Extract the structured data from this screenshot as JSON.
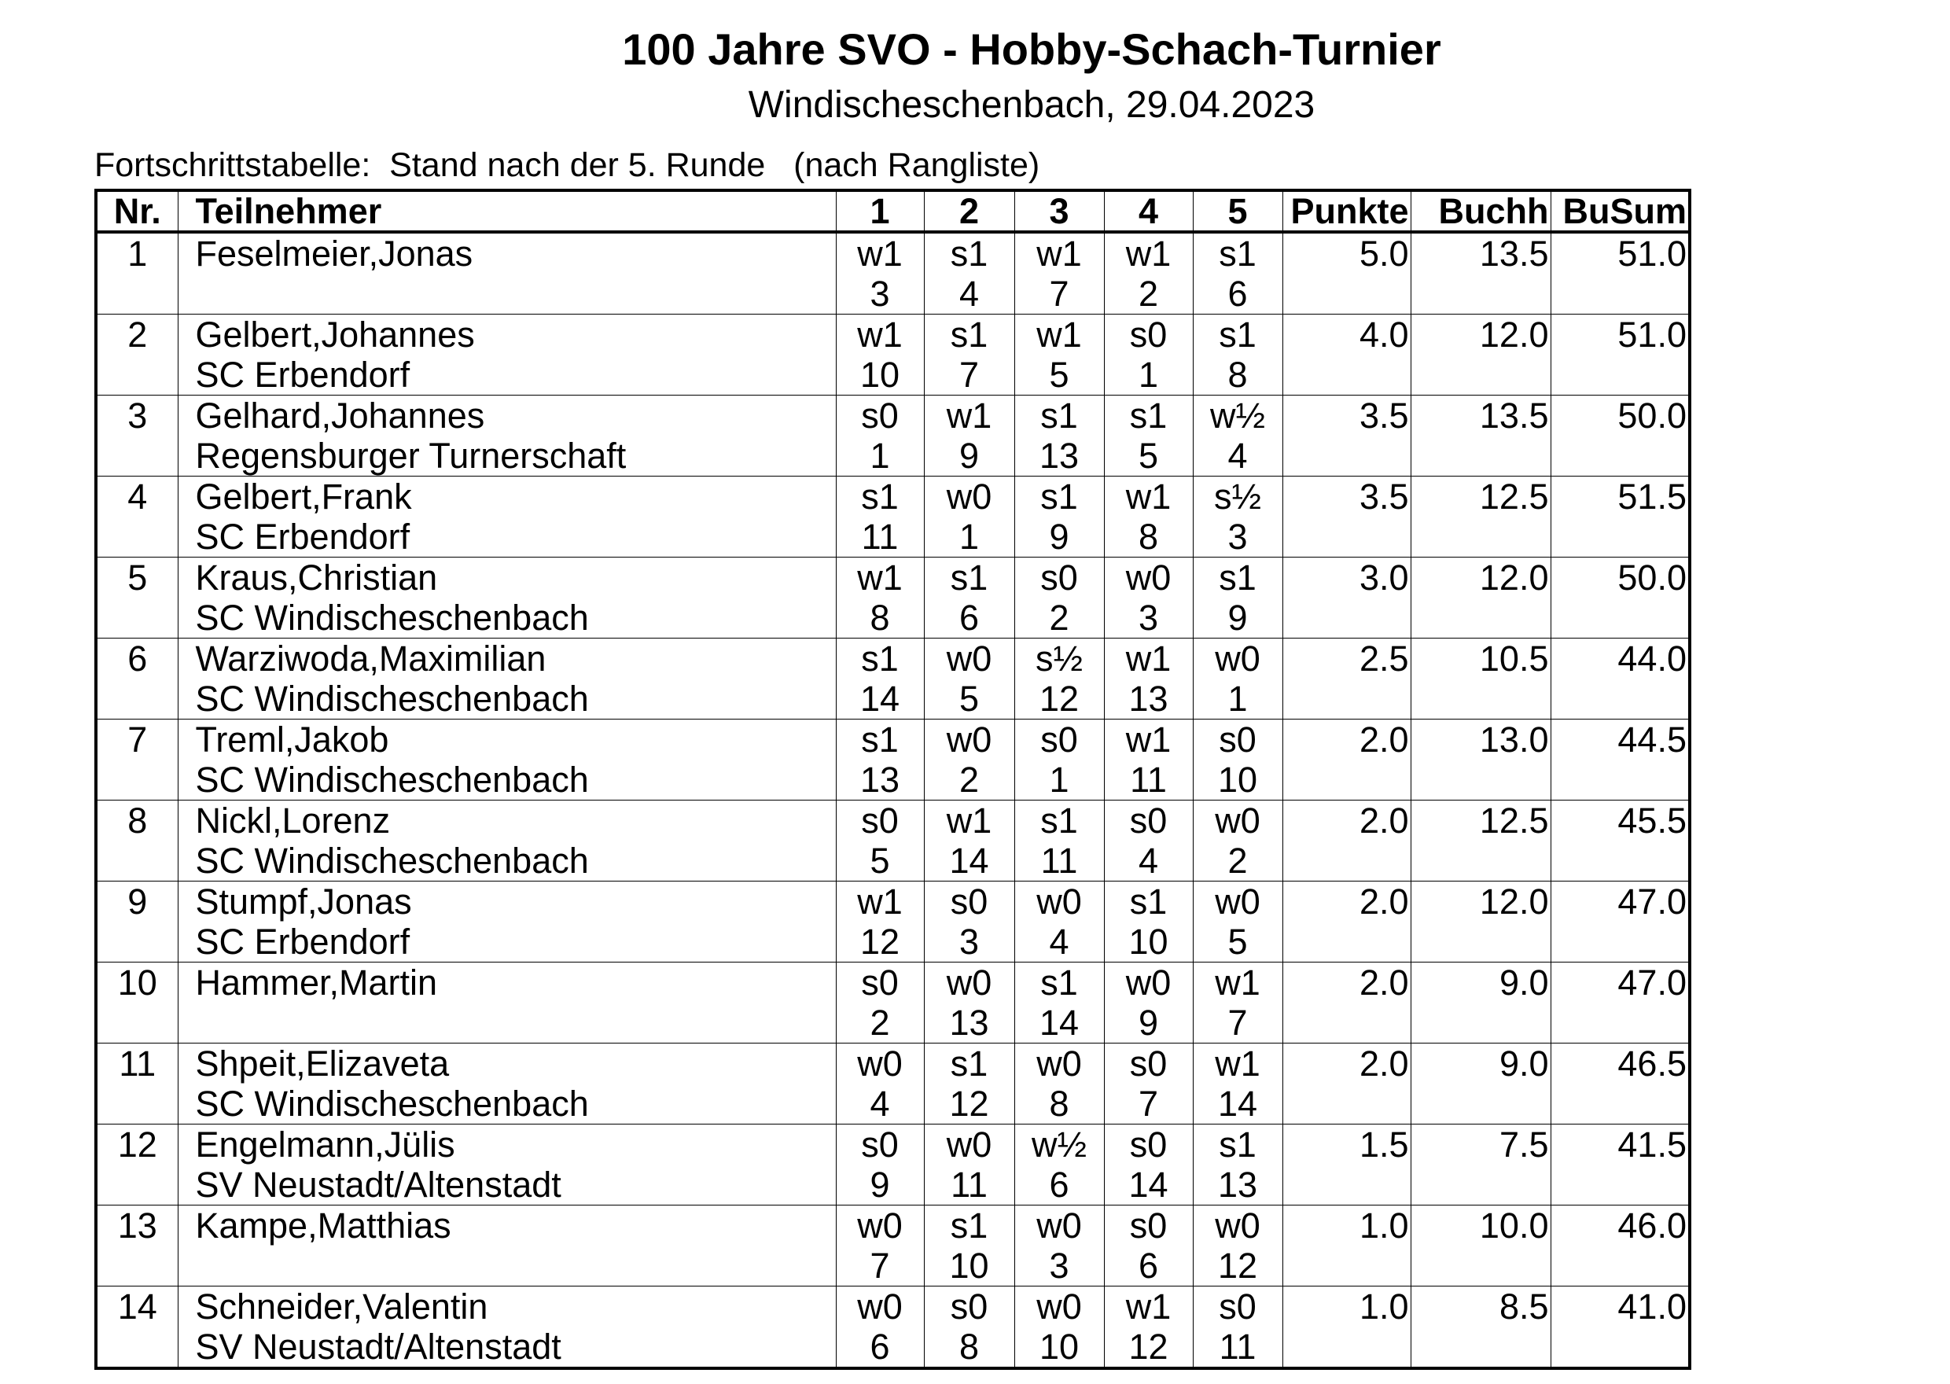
{
  "header": {
    "title": "100 Jahre SVO - Hobby-Schach-Turnier",
    "subtitle": "Windischeschenbach, 29.04.2023",
    "caption": "Fortschrittstabelle:  Stand nach der 5. Runde   (nach Rangliste)"
  },
  "table": {
    "columns": [
      "Nr.",
      "Teilnehmer",
      "1",
      "2",
      "3",
      "4",
      "5",
      "Punkte",
      "Buchh",
      "BuSum"
    ],
    "rows": [
      {
        "nr": "1",
        "name": "Feselmeier,Jonas",
        "club": "",
        "rounds": [
          [
            "w1",
            "3"
          ],
          [
            "s1",
            "4"
          ],
          [
            "w1",
            "7"
          ],
          [
            "w1",
            "2"
          ],
          [
            "s1",
            "6"
          ]
        ],
        "punkte": "5.0",
        "buchh": "13.5",
        "busum": "51.0"
      },
      {
        "nr": "2",
        "name": "Gelbert,Johannes",
        "club": "SC Erbendorf",
        "rounds": [
          [
            "w1",
            "10"
          ],
          [
            "s1",
            "7"
          ],
          [
            "w1",
            "5"
          ],
          [
            "s0",
            "1"
          ],
          [
            "s1",
            "8"
          ]
        ],
        "punkte": "4.0",
        "buchh": "12.0",
        "busum": "51.0"
      },
      {
        "nr": "3",
        "name": "Gelhard,Johannes",
        "club": "Regensburger Turnerschaft",
        "rounds": [
          [
            "s0",
            "1"
          ],
          [
            "w1",
            "9"
          ],
          [
            "s1",
            "13"
          ],
          [
            "s1",
            "5"
          ],
          [
            "w½",
            "4"
          ]
        ],
        "punkte": "3.5",
        "buchh": "13.5",
        "busum": "50.0"
      },
      {
        "nr": "4",
        "name": "Gelbert,Frank",
        "club": "SC Erbendorf",
        "rounds": [
          [
            "s1",
            "11"
          ],
          [
            "w0",
            "1"
          ],
          [
            "s1",
            "9"
          ],
          [
            "w1",
            "8"
          ],
          [
            "s½",
            "3"
          ]
        ],
        "punkte": "3.5",
        "buchh": "12.5",
        "busum": "51.5"
      },
      {
        "nr": "5",
        "name": "Kraus,Christian",
        "club": "SC Windischeschenbach",
        "rounds": [
          [
            "w1",
            "8"
          ],
          [
            "s1",
            "6"
          ],
          [
            "s0",
            "2"
          ],
          [
            "w0",
            "3"
          ],
          [
            "s1",
            "9"
          ]
        ],
        "punkte": "3.0",
        "buchh": "12.0",
        "busum": "50.0"
      },
      {
        "nr": "6",
        "name": "Warziwoda,Maximilian",
        "club": "SC Windischeschenbach",
        "rounds": [
          [
            "s1",
            "14"
          ],
          [
            "w0",
            "5"
          ],
          [
            "s½",
            "12"
          ],
          [
            "w1",
            "13"
          ],
          [
            "w0",
            "1"
          ]
        ],
        "punkte": "2.5",
        "buchh": "10.5",
        "busum": "44.0"
      },
      {
        "nr": "7",
        "name": "Treml,Jakob",
        "club": "SC Windischeschenbach",
        "rounds": [
          [
            "s1",
            "13"
          ],
          [
            "w0",
            "2"
          ],
          [
            "s0",
            "1"
          ],
          [
            "w1",
            "11"
          ],
          [
            "s0",
            "10"
          ]
        ],
        "punkte": "2.0",
        "buchh": "13.0",
        "busum": "44.5"
      },
      {
        "nr": "8",
        "name": "Nickl,Lorenz",
        "club": "SC Windischeschenbach",
        "rounds": [
          [
            "s0",
            "5"
          ],
          [
            "w1",
            "14"
          ],
          [
            "s1",
            "11"
          ],
          [
            "s0",
            "4"
          ],
          [
            "w0",
            "2"
          ]
        ],
        "punkte": "2.0",
        "buchh": "12.5",
        "busum": "45.5"
      },
      {
        "nr": "9",
        "name": "Stumpf,Jonas",
        "club": "SC Erbendorf",
        "rounds": [
          [
            "w1",
            "12"
          ],
          [
            "s0",
            "3"
          ],
          [
            "w0",
            "4"
          ],
          [
            "s1",
            "10"
          ],
          [
            "w0",
            "5"
          ]
        ],
        "punkte": "2.0",
        "buchh": "12.0",
        "busum": "47.0"
      },
      {
        "nr": "10",
        "name": "Hammer,Martin",
        "club": "",
        "rounds": [
          [
            "s0",
            "2"
          ],
          [
            "w0",
            "13"
          ],
          [
            "s1",
            "14"
          ],
          [
            "w0",
            "9"
          ],
          [
            "w1",
            "7"
          ]
        ],
        "punkte": "2.0",
        "buchh": "9.0",
        "busum": "47.0"
      },
      {
        "nr": "11",
        "name": "Shpeit,Elizaveta",
        "club": "SC Windischeschenbach",
        "rounds": [
          [
            "w0",
            "4"
          ],
          [
            "s1",
            "12"
          ],
          [
            "w0",
            "8"
          ],
          [
            "s0",
            "7"
          ],
          [
            "w1",
            "14"
          ]
        ],
        "punkte": "2.0",
        "buchh": "9.0",
        "busum": "46.5"
      },
      {
        "nr": "12",
        "name": "Engelmann,Jülis",
        "club": "SV Neustadt/Altenstadt",
        "rounds": [
          [
            "s0",
            "9"
          ],
          [
            "w0",
            "11"
          ],
          [
            "w½",
            "6"
          ],
          [
            "s0",
            "14"
          ],
          [
            "s1",
            "13"
          ]
        ],
        "punkte": "1.5",
        "buchh": "7.5",
        "busum": "41.5"
      },
      {
        "nr": "13",
        "name": "Kampe,Matthias",
        "club": "",
        "rounds": [
          [
            "w0",
            "7"
          ],
          [
            "s1",
            "10"
          ],
          [
            "w0",
            "3"
          ],
          [
            "s0",
            "6"
          ],
          [
            "w0",
            "12"
          ]
        ],
        "punkte": "1.0",
        "buchh": "10.0",
        "busum": "46.0"
      },
      {
        "nr": "14",
        "name": "Schneider,Valentin",
        "club": "SV Neustadt/Altenstadt",
        "rounds": [
          [
            "w0",
            "6"
          ],
          [
            "s0",
            "8"
          ],
          [
            "w0",
            "10"
          ],
          [
            "w1",
            "12"
          ],
          [
            "s0",
            "11"
          ]
        ],
        "punkte": "1.0",
        "buchh": "8.5",
        "busum": "41.0"
      }
    ]
  }
}
